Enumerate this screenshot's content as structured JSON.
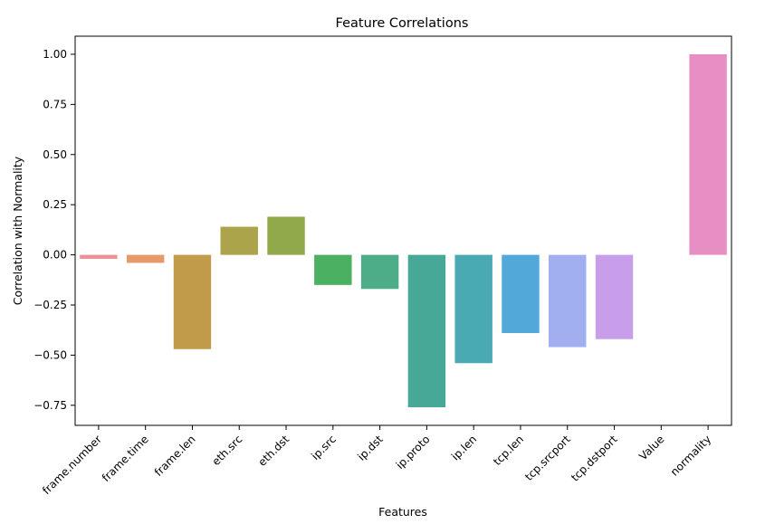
{
  "chart_data": {
    "type": "bar",
    "title": "Feature Correlations",
    "xlabel": "Features",
    "ylabel": "Correlation with Normality",
    "ylim": [
      -0.85,
      1.09
    ],
    "yticks": [
      -0.75,
      -0.5,
      -0.25,
      0.0,
      0.25,
      0.5,
      0.75,
      1.0
    ],
    "ytick_labels": [
      "−0.75",
      "−0.50",
      "−0.25",
      "0.00",
      "0.25",
      "0.50",
      "0.75",
      "1.00"
    ],
    "categories": [
      "frame.number",
      "frame.time",
      "frame.len",
      "eth.src",
      "eth.dst",
      "ip.src",
      "ip.dst",
      "ip.proto",
      "ip.len",
      "tcp.len",
      "tcp.srcport",
      "tcp.dstport",
      "Value",
      "normality"
    ],
    "values": [
      -0.02,
      -0.04,
      -0.47,
      0.14,
      0.19,
      -0.15,
      -0.17,
      -0.76,
      -0.54,
      -0.39,
      -0.46,
      -0.42,
      null,
      1.0
    ],
    "colors": [
      "#e99396",
      "#e69969",
      "#c29b4a",
      "#aba44a",
      "#91a94a",
      "#4cb061",
      "#4ead89",
      "#48a898",
      "#4aaab3",
      "#52a9d9",
      "#a1aef0",
      "#c89dea",
      "#e792d7",
      "#e78fc5"
    ],
    "grid": false,
    "legend": "none"
  }
}
